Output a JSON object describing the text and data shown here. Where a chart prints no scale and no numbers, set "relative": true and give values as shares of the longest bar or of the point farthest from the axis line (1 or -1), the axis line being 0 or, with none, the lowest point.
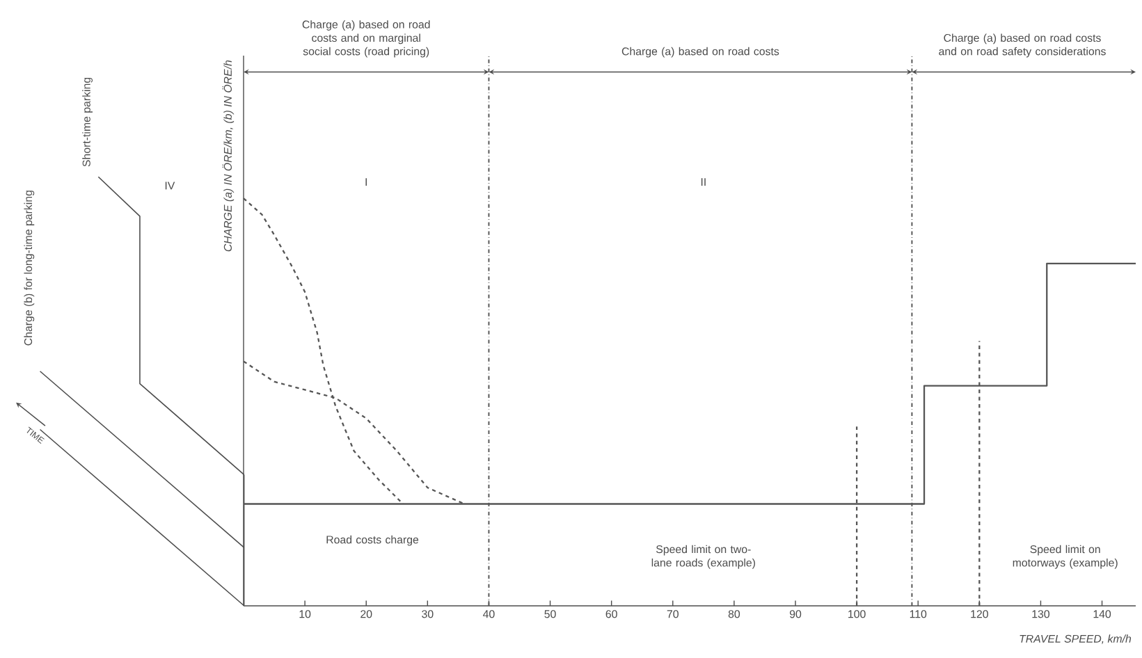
{
  "chart_data": {
    "type": "line",
    "relative": true,
    "xlabel": "TRAVEL SPEED, km/h",
    "ylabel": "CHARGE (a) IN ÖRE/km, (b) IN ÖRE/h",
    "xlim": [
      0,
      145.5
    ],
    "xticks": [
      10,
      20,
      30,
      40,
      50,
      60,
      70,
      80,
      90,
      100,
      110,
      120,
      130,
      140
    ],
    "grid": false,
    "marker": "none",
    "series": [
      {
        "color": "#555555",
        "line_style": "solid",
        "x": [
          0,
          111,
          111,
          131,
          131,
          145.5
        ],
        "values": [
          0.25,
          0.25,
          0.54,
          0.54,
          0.84,
          0.84
        ]
      },
      {
        "color": "#555555",
        "line_style": "dashed",
        "x": [
          0,
          3,
          5,
          8,
          10,
          12,
          13,
          15,
          18,
          22,
          26
        ],
        "values": [
          1.0,
          0.96,
          0.91,
          0.83,
          0.77,
          0.67,
          0.59,
          0.49,
          0.38,
          0.31,
          0.25
        ]
      },
      {
        "color": "#555555",
        "line_style": "dashed",
        "x": [
          0,
          5,
          10,
          15,
          20,
          25,
          30,
          36
        ],
        "values": [
          0.6,
          0.55,
          0.53,
          0.51,
          0.46,
          0.38,
          0.29,
          0.25
        ]
      },
      {
        "color": "#555555",
        "line_style": "dashed",
        "x": [
          100,
          100
        ],
        "values": [
          0,
          0.44
        ]
      },
      {
        "color": "#555555",
        "line_style": "dashed",
        "x": [
          120,
          120
        ],
        "values": [
          0,
          0.65
        ]
      }
    ],
    "ref_lines": [
      {
        "axis": "x",
        "value": 40,
        "line_style": "dashdot",
        "color": "#555555"
      },
      {
        "axis": "x",
        "value": 109,
        "line_style": "dashdot",
        "color": "#555555"
      }
    ],
    "annotations": [
      "Charge (a) based on road costs and on marginal social costs (road pricing)",
      "Charge (a) based on road costs",
      "Charge (a) based on road costs and on road safety considerations",
      "I",
      "II",
      "Road costs charge",
      "Speed limit on two-lane roads (example)",
      "Speed limit on motorways (example)",
      "IV",
      "Short-time parking",
      "Charge (b) for long-time parking",
      "TIME"
    ]
  }
}
